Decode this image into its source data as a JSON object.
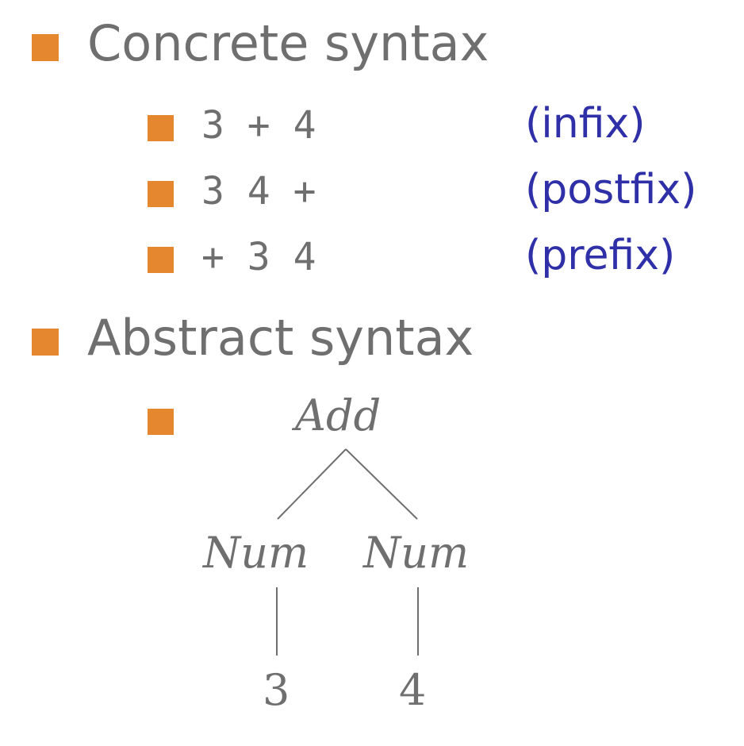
{
  "concrete": {
    "heading": "Concrete syntax",
    "items": [
      {
        "expr": "3 + 4",
        "note": "(infix)"
      },
      {
        "expr": "3 4 +",
        "note": "(postfix)"
      },
      {
        "expr": "+ 3 4",
        "note": "(prefix)"
      }
    ]
  },
  "abstract": {
    "heading": "Abstract syntax",
    "tree": {
      "root": "Add",
      "left": "Num",
      "right": "Num",
      "left_leaf": "3",
      "right_leaf": "4"
    }
  },
  "colors": {
    "bullet": "#e5872e",
    "text": "#6f6f6f",
    "note": "#2f2fa8"
  }
}
